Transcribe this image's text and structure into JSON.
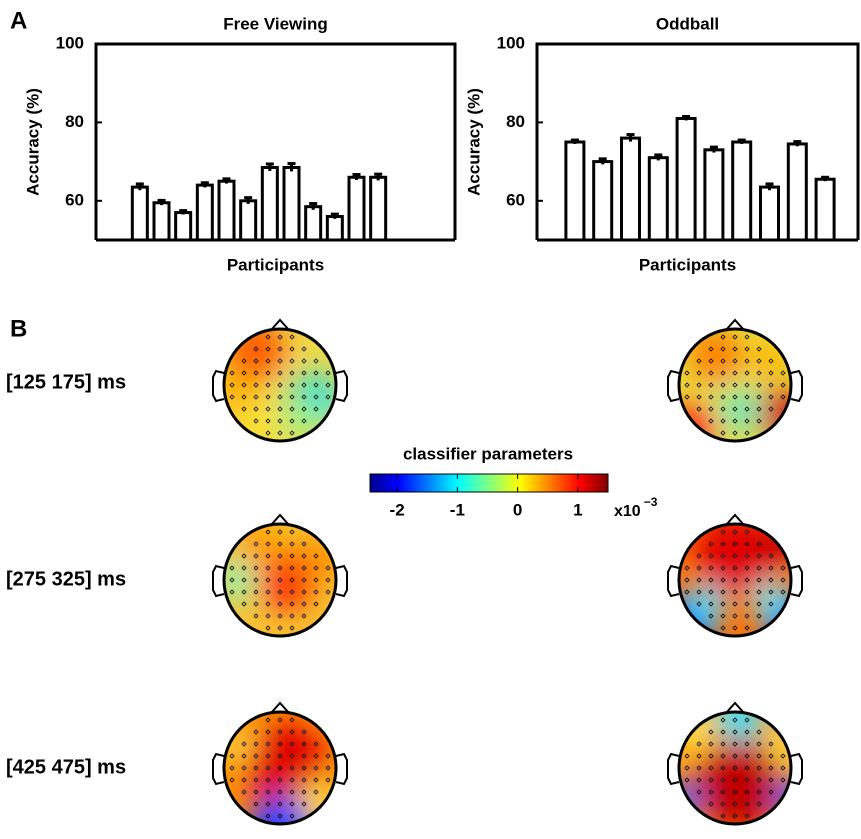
{
  "chart_data": [
    {
      "type": "bar",
      "title": "Free Viewing",
      "x_label": "Participants",
      "y_label": "Accuracy (%)",
      "categories": [
        null,
        null,
        null,
        null,
        null,
        null,
        null,
        null,
        null,
        null,
        null,
        null
      ],
      "values": [
        63.5,
        59.5,
        57,
        64,
        65,
        60,
        68.5,
        68.5,
        58.5,
        56,
        66,
        66
      ],
      "errors": [
        0.8,
        0.6,
        0.5,
        0.6,
        0.6,
        0.8,
        0.9,
        1.0,
        0.8,
        0.6,
        0.7,
        0.8
      ],
      "color": "#ffffff",
      "ylim": [
        50,
        100
      ],
      "yticks": [
        60,
        80,
        100
      ]
    },
    {
      "type": "bar",
      "title": "Oddball",
      "x_label": "Participants",
      "y_label": "Accuracy (%)",
      "categories": [
        null,
        null,
        null,
        null,
        null,
        null,
        null,
        null,
        null,
        null
      ],
      "values": [
        75,
        70,
        76,
        71,
        81,
        73,
        75,
        63.5,
        74.5,
        65.5
      ],
      "errors": [
        0.5,
        0.7,
        0.9,
        0.7,
        0.5,
        0.7,
        0.5,
        0.8,
        0.6,
        0.5
      ],
      "color": "#ffffff",
      "ylim": [
        50,
        100
      ],
      "yticks": [
        60,
        80,
        100
      ]
    }
  ],
  "panel_labels": [
    "A",
    "B"
  ],
  "time_windows": [
    "[125 175] ms",
    "[275 325] ms",
    "[425 475] ms"
  ],
  "colorbar": {
    "label": "classifier parameters",
    "lim": [
      -2.45,
      1.5
    ],
    "ticks": [
      -2,
      -1,
      0,
      1
    ],
    "multiplier": "x10",
    "exponent": "−3"
  }
}
